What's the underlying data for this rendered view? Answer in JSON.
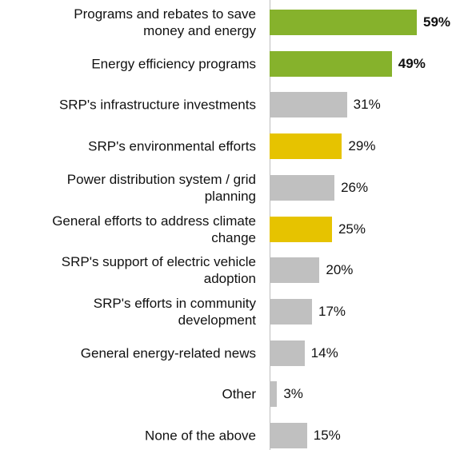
{
  "chart_data": {
    "type": "bar",
    "orientation": "horizontal",
    "categories": [
      "Programs and rebates to save\nmoney and energy",
      "Energy efficiency programs",
      "SRP's infrastructure investments",
      "SRP's environmental efforts",
      "Power distribution system / grid\nplanning",
      "General efforts to address climate\nchange",
      "SRP's support of electric vehicle\nadoption",
      "SRP's efforts in community\ndevelopment",
      "General energy-related news",
      "Other",
      "None of the above"
    ],
    "values": [
      59,
      49,
      31,
      29,
      26,
      25,
      20,
      17,
      14,
      3,
      15
    ],
    "value_labels": [
      "59%",
      "49%",
      "31%",
      "29%",
      "26%",
      "25%",
      "20%",
      "17%",
      "14%",
      "3%",
      "15%"
    ],
    "colors": [
      "#86b22c",
      "#86b22c",
      "#c0c0c0",
      "#e6c300",
      "#c0c0c0",
      "#e6c300",
      "#c0c0c0",
      "#c0c0c0",
      "#c0c0c0",
      "#c0c0c0",
      "#c0c0c0"
    ],
    "value_label_bold": [
      true,
      true,
      false,
      false,
      false,
      false,
      false,
      false,
      false,
      false,
      false
    ],
    "xlim": [
      0,
      76
    ]
  }
}
